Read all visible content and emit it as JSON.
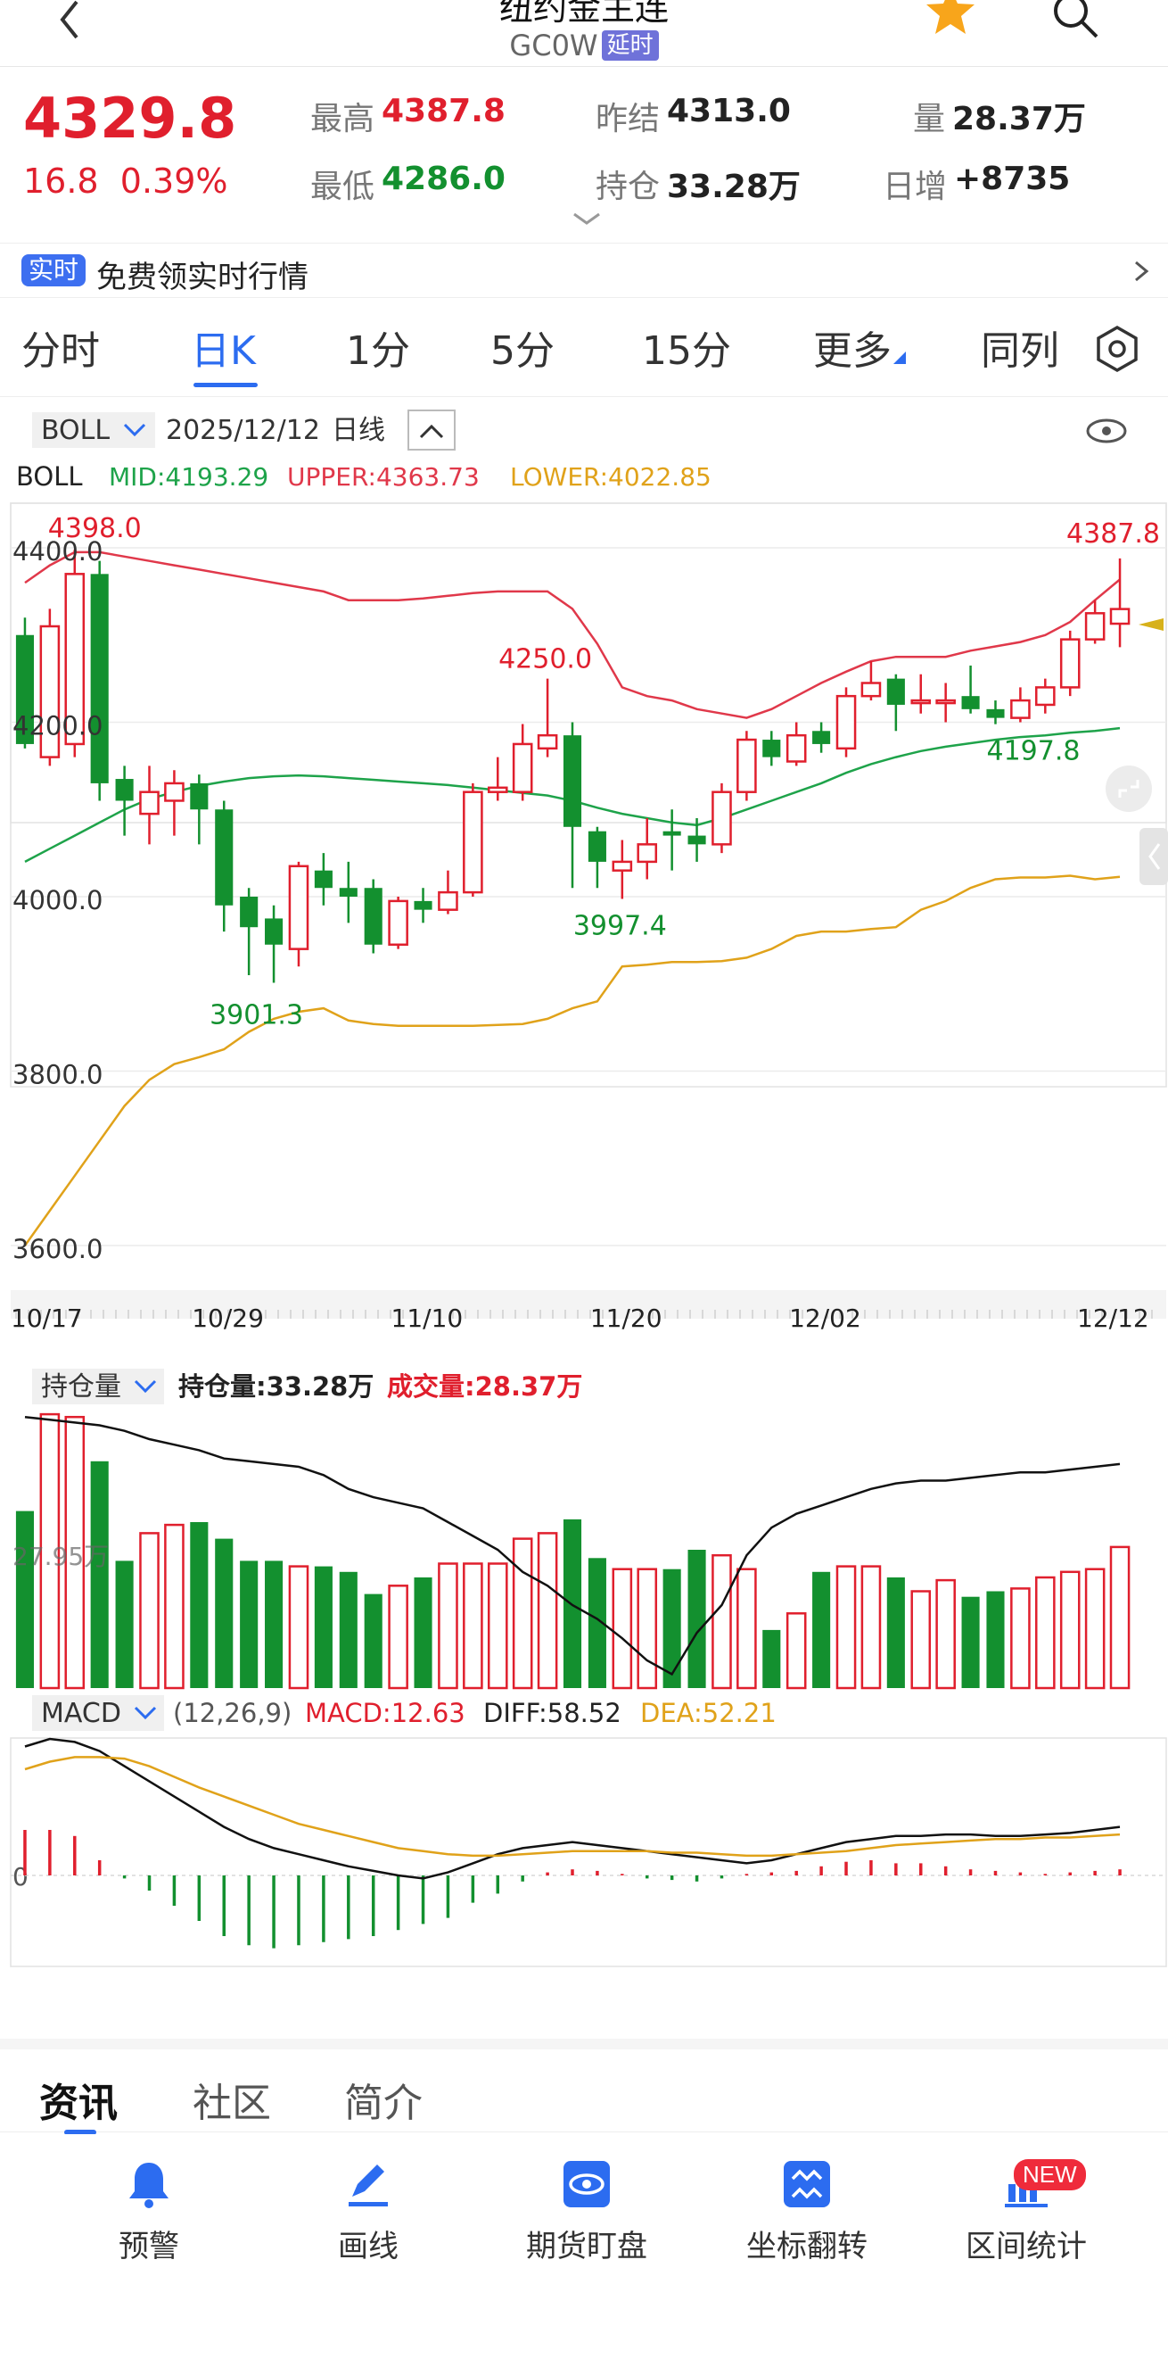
{
  "header": {
    "title": "纽约金主连",
    "code": "GC0W",
    "delay_badge": "延时"
  },
  "quote": {
    "price": "4329.8",
    "change": "16.8",
    "change_pct": "0.39%",
    "high_label": "最高",
    "high": "4387.8",
    "low_label": "最低",
    "low": "4286.0",
    "prev_settle_label": "昨结",
    "prev_settle": "4313.0",
    "open_interest_label": "持仓",
    "open_interest": "33.28万",
    "volume_label": "量",
    "volume": "28.37万",
    "daily_inc_label": "日增",
    "daily_inc": "+8735"
  },
  "promo": {
    "badge": "实时",
    "text": "免费领实时行情"
  },
  "tabs": [
    "分时",
    "日K",
    "1分",
    "5分",
    "15分",
    "更多",
    "同列"
  ],
  "active_tab": "日K",
  "chart_toolbar": {
    "indicator": "BOLL",
    "date": "2025/12/12",
    "period": "日线"
  },
  "boll_legend": {
    "name": "BOLL",
    "mid": "MID:4193.29",
    "upper": "UPPER:4363.73",
    "lower": "LOWER:4022.85"
  },
  "colors": {
    "up": "#e01f2d",
    "down": "#13902f",
    "mid": "#1ea34a",
    "upper": "#e0384a",
    "lower": "#e0a21a",
    "accent": "#2c6cf0"
  },
  "chart_data": {
    "type": "candlestick",
    "price_axis": {
      "ticks": [
        "4400.0",
        "4200.0",
        "4000.0",
        "3800.0",
        "3600.0"
      ],
      "range": [
        3600,
        4400
      ]
    },
    "date_ticks": [
      "10/17",
      "10/29",
      "11/10",
      "11/20",
      "12/02",
      "12/12"
    ],
    "annotations": [
      "4398.0",
      "4250.0",
      "3997.4",
      "3901.3",
      "4197.8",
      "4387.8"
    ],
    "candles": [
      [
        4300,
        4175,
        4320,
        4170
      ],
      [
        4160,
        4310,
        4330,
        4150
      ],
      [
        4175,
        4370,
        4398,
        4160
      ],
      [
        4370,
        4130,
        4385,
        4110
      ],
      [
        4135,
        4110,
        4150,
        4070
      ],
      [
        4095,
        4120,
        4150,
        4060
      ],
      [
        4110,
        4130,
        4145,
        4070
      ],
      [
        4130,
        4100,
        4140,
        4060
      ],
      [
        4100,
        3990,
        4110,
        3960
      ],
      [
        4000,
        3965,
        4010,
        3910
      ],
      [
        3975,
        3945,
        3990,
        3901.3
      ],
      [
        3940,
        4035,
        4040,
        3920
      ],
      [
        4030,
        4010,
        4050,
        3990
      ],
      [
        4010,
        4000,
        4040,
        3970
      ],
      [
        4010,
        3945,
        4020,
        3935
      ],
      [
        3945,
        3995,
        4000,
        3940
      ],
      [
        3995,
        3985,
        4010,
        3970
      ],
      [
        3985,
        4005,
        4030,
        3980
      ],
      [
        4005,
        4120,
        4130,
        4000
      ],
      [
        4120,
        4125,
        4160,
        4110
      ],
      [
        4120,
        4175,
        4198,
        4110
      ],
      [
        4170,
        4185,
        4250,
        4160
      ],
      [
        4185,
        4080,
        4200,
        4010
      ],
      [
        4075,
        4040,
        4080,
        4010
      ],
      [
        4030,
        4040,
        4065,
        3997.4
      ],
      [
        4040,
        4060,
        4090,
        4020
      ],
      [
        4075,
        4070,
        4100,
        4030
      ],
      [
        4070,
        4060,
        4090,
        4040
      ],
      [
        4060,
        4120,
        4130,
        4050
      ],
      [
        4120,
        4180,
        4190,
        4110
      ],
      [
        4180,
        4160,
        4190,
        4150
      ],
      [
        4155,
        4185,
        4200,
        4150
      ],
      [
        4190,
        4175,
        4200,
        4165
      ],
      [
        4170,
        4230,
        4240,
        4160
      ],
      [
        4230,
        4245,
        4270,
        4225
      ],
      [
        4250,
        4220,
        4255,
        4190
      ],
      [
        4225,
        4225,
        4255,
        4210
      ],
      [
        4225,
        4225,
        4245,
        4200
      ],
      [
        4230,
        4215,
        4265,
        4210
      ],
      [
        4215,
        4205,
        4225,
        4197.8
      ],
      [
        4205,
        4225,
        4240,
        4200
      ],
      [
        4220,
        4240,
        4250,
        4210
      ],
      [
        4240,
        4295,
        4305,
        4230
      ],
      [
        4295,
        4325,
        4340,
        4290
      ],
      [
        4313,
        4329.8,
        4387.8,
        4286
      ]
    ],
    "boll_upper": [
      4360,
      4380,
      4395,
      4395,
      4390,
      4385,
      4380,
      4375,
      4370,
      4365,
      4360,
      4355,
      4350,
      4340,
      4340,
      4340,
      4342,
      4345,
      4348,
      4350,
      4350,
      4350,
      4330,
      4290,
      4240,
      4230,
      4225,
      4215,
      4210,
      4205,
      4215,
      4230,
      4245,
      4258,
      4270,
      4275,
      4275,
      4275,
      4282,
      4287,
      4292,
      4300,
      4315,
      4340,
      4363.73
    ],
    "boll_mid": [
      4040,
      4055,
      4070,
      4085,
      4100,
      4112,
      4120,
      4127,
      4132,
      4136,
      4138,
      4139,
      4138,
      4136,
      4134,
      4132,
      4130,
      4128,
      4125,
      4122,
      4119,
      4116,
      4110,
      4102,
      4095,
      4090,
      4085,
      4082,
      4090,
      4100,
      4110,
      4120,
      4130,
      4142,
      4152,
      4160,
      4167,
      4172,
      4176,
      4180,
      4183,
      4185,
      4188,
      4190,
      4193.29
    ],
    "boll_lower": [
      3600,
      3640,
      3680,
      3720,
      3760,
      3790,
      3808,
      3816,
      3825,
      3845,
      3860,
      3868,
      3872,
      3858,
      3854,
      3852,
      3852,
      3852,
      3852,
      3853,
      3854,
      3860,
      3872,
      3880,
      3920,
      3922,
      3925,
      3925,
      3926,
      3930,
      3940,
      3955,
      3960,
      3960,
      3963,
      3965,
      3985,
      3995,
      4010,
      4020,
      4022,
      4022,
      4024,
      4020,
      4022.85
    ]
  },
  "oi_panel": {
    "selector": "持仓量",
    "oi_label": "持仓量:33.28万",
    "vol_label": "成交量:28.37万",
    "axis_label": "27.95万",
    "volumes": [
      0.64,
      0.99,
      0.98,
      0.82,
      0.46,
      0.56,
      0.59,
      0.6,
      0.54,
      0.46,
      0.46,
      0.44,
      0.44,
      0.42,
      0.34,
      0.37,
      0.4,
      0.45,
      0.45,
      0.45,
      0.54,
      0.56,
      0.61,
      0.47,
      0.43,
      0.43,
      0.43,
      0.5,
      0.48,
      0.43,
      0.21,
      0.27,
      0.42,
      0.44,
      0.44,
      0.4,
      0.35,
      0.39,
      0.33,
      0.35,
      0.36,
      0.4,
      0.42,
      0.43,
      0.51
    ],
    "oi_line": [
      0.98,
      0.97,
      0.96,
      0.95,
      0.93,
      0.9,
      0.88,
      0.86,
      0.83,
      0.82,
      0.81,
      0.8,
      0.77,
      0.72,
      0.69,
      0.67,
      0.65,
      0.6,
      0.55,
      0.5,
      0.42,
      0.37,
      0.3,
      0.25,
      0.18,
      0.1,
      0.05,
      0.2,
      0.3,
      0.48,
      0.58,
      0.63,
      0.66,
      0.69,
      0.72,
      0.74,
      0.75,
      0.75,
      0.76,
      0.77,
      0.78,
      0.78,
      0.79,
      0.8,
      0.81
    ]
  },
  "macd_panel": {
    "selector": "MACD",
    "params": "(12,26,9)",
    "macd": "MACD:12.63",
    "diff": "DIFF:58.52",
    "dea": "DEA:52.21",
    "zero_label": "0",
    "bars": [
      30,
      30,
      26,
      10,
      -2,
      -10,
      -20,
      -30,
      -40,
      -46,
      -48,
      -46,
      -44,
      -42,
      -40,
      -36,
      -32,
      -28,
      -18,
      -12,
      -4,
      2,
      4,
      3,
      1,
      -2,
      -3,
      -4,
      -2,
      1,
      2,
      3,
      6,
      9,
      10,
      8,
      8,
      6,
      4,
      3,
      2,
      1,
      2,
      3,
      4
    ],
    "diff_line": [
      85,
      90,
      88,
      82,
      72,
      62,
      52,
      42,
      32,
      24,
      18,
      14,
      10,
      6,
      3,
      0,
      -2,
      2,
      8,
      14,
      18,
      20,
      22,
      20,
      18,
      16,
      14,
      12,
      10,
      8,
      10,
      14,
      18,
      22,
      24,
      26,
      26,
      27,
      27,
      26,
      26,
      27,
      28,
      30,
      32
    ],
    "dea_line": [
      70,
      75,
      78,
      78,
      77,
      72,
      65,
      58,
      52,
      46,
      40,
      34,
      30,
      26,
      22,
      18,
      16,
      14,
      13,
      13,
      14,
      15,
      16,
      16,
      16,
      16,
      15,
      15,
      14,
      13,
      13,
      14,
      15,
      16,
      18,
      20,
      21,
      22,
      23,
      24,
      24,
      25,
      25,
      26,
      27
    ]
  },
  "news_tabs": [
    "资讯",
    "社区",
    "简介"
  ],
  "bottom_bar": [
    {
      "label": "预警",
      "icon": "bell-icon"
    },
    {
      "label": "画线",
      "icon": "pen-icon"
    },
    {
      "label": "期货盯盘",
      "icon": "eye-icon"
    },
    {
      "label": "坐标翻转",
      "icon": "flip-icon"
    },
    {
      "label": "区间统计",
      "icon": "stats-icon"
    }
  ],
  "new_badge": "NEW"
}
